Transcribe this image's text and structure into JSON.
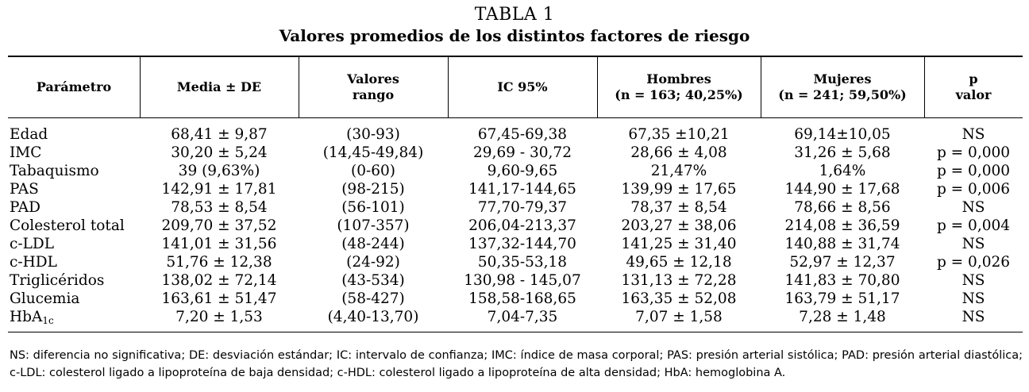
{
  "table_number": "TABLA 1",
  "table_title": "Valores promedios de los distintos factores de riesgo",
  "headers": [
    {
      "line1": "Parámetro",
      "line2": ""
    },
    {
      "line1": "Media ± DE",
      "line2": ""
    },
    {
      "line1": "Valores",
      "line2": "rango"
    },
    {
      "line1": "IC 95%",
      "line2": ""
    },
    {
      "line1": "Hombres",
      "line2": "(n = 163; 40,25%)"
    },
    {
      "line1": "Mujeres",
      "line2": "(n = 241; 59,50%)"
    },
    {
      "line1": "p",
      "line2": "valor"
    }
  ],
  "rows": [
    {
      "param": "Edad",
      "param_sub": "",
      "media": "68,41 ± 9,87",
      "rango": "(30-93)",
      "ic": "67,45-69,38",
      "hombres": "67,35 ±10,21",
      "mujeres": "69,14±10,05",
      "p": "NS"
    },
    {
      "param": "IMC",
      "param_sub": "",
      "media": "30,20 ± 5,24",
      "rango": "(14,45-49,84)",
      "ic": "29,69 - 30,72",
      "hombres": "28,66 ± 4,08",
      "mujeres": "31,26 ± 5,68",
      "p": "p = 0,000"
    },
    {
      "param": "Tabaquismo",
      "param_sub": "",
      "media": "39 (9,63%)",
      "rango": "(0-60)",
      "ic": "9,60-9,65",
      "hombres": "21,47%",
      "mujeres": "1,64%",
      "p": "p = 0,000"
    },
    {
      "param": "PAS",
      "param_sub": "",
      "media": "142,91 ± 17,81",
      "rango": "(98-215)",
      "ic": "141,17-144,65",
      "hombres": "139,99 ± 17,65",
      "mujeres": "144,90 ± 17,68",
      "p": "p = 0,006"
    },
    {
      "param": "PAD",
      "param_sub": "",
      "media": "78,53 ± 8,54",
      "rango": "(56-101)",
      "ic": "77,70-79,37",
      "hombres": "78,37 ± 8,54",
      "mujeres": "78,66 ± 8,56",
      "p": "NS"
    },
    {
      "param": "Colesterol total",
      "param_sub": "",
      "media": "209,70 ± 37,52",
      "rango": "(107-357)",
      "ic": "206,04-213,37",
      "hombres": "203,27 ± 38,06",
      "mujeres": "214,08 ± 36,59",
      "p": "p = 0,004"
    },
    {
      "param": "c-LDL",
      "param_sub": "",
      "media": "141,01 ± 31,56",
      "rango": "(48-244)",
      "ic": "137,32-144,70",
      "hombres": "141,25 ± 31,40",
      "mujeres": "140,88 ± 31,74",
      "p": "NS"
    },
    {
      "param": "c-HDL",
      "param_sub": "",
      "media": "51,76 ± 12,38",
      "rango": "(24-92)",
      "ic": "50,35-53,18",
      "hombres": "49,65 ± 12,18",
      "mujeres": "52,97 ± 12,37",
      "p": "p = 0,026"
    },
    {
      "param": "Triglicéridos",
      "param_sub": "",
      "media": "138,02 ± 72,14",
      "rango": "(43-534)",
      "ic": "130,98 - 145,07",
      "hombres": "131,13 ± 72,28",
      "mujeres": "141,83 ± 70,80",
      "p": "NS"
    },
    {
      "param": "Glucemia",
      "param_sub": "",
      "media": "163,61 ± 51,47",
      "rango": "(58-427)",
      "ic": "158,58-168,65",
      "hombres": "163,35 ± 52,08",
      "mujeres": "163,79 ± 51,17",
      "p": "NS"
    },
    {
      "param": "HbA",
      "param_sub": "1c",
      "media": "7,20 ± 1,53",
      "rango": "(4,40-13,70)",
      "ic": "7,04-7,35",
      "hombres": "7,07 ± 1,58",
      "mujeres": "7,28 ± 1,48",
      "p": "NS"
    }
  ],
  "footnote": "NS: diferencia no significativa; DE: desviación estándar; IC: intervalo de confianza; IMC: índice de masa corporal; PAS: presión arterial sistólica; PAD: presión arterial diastólica; c-LDL: colesterol ligado a lipoproteína de baja densidad; c-HDL: colesterol ligado a lipoproteína de alta densidad; HbA: hemoglobina A."
}
